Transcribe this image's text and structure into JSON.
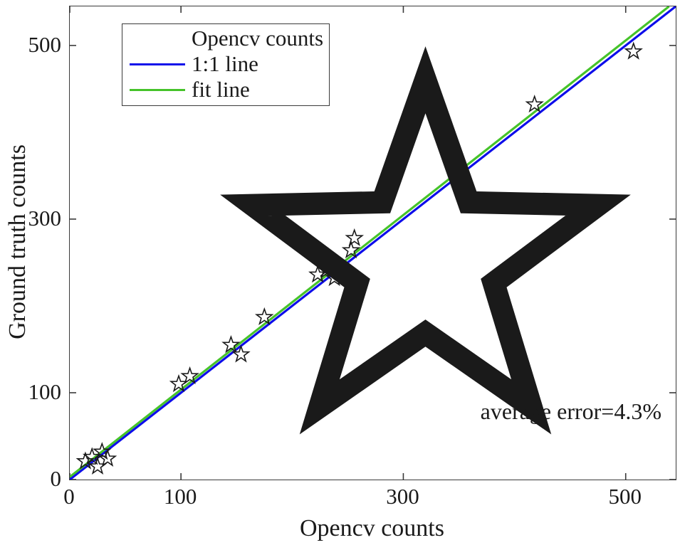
{
  "figure": {
    "background": "#ffffff",
    "text_color": "#1a1a1a",
    "axis_color": "#3a3a3a"
  },
  "chart_data": {
    "type": "scatter",
    "title": "",
    "xlabel": "Opencv counts",
    "ylabel": "Ground truth counts",
    "xlim": [
      0,
      545
    ],
    "ylim": [
      0,
      545
    ],
    "x_ticks": [
      0,
      100,
      300,
      500
    ],
    "y_ticks": [
      0,
      100,
      300,
      500
    ],
    "grid": false,
    "annotation": "average error=4.3%",
    "series": [
      {
        "name": "Opencv counts",
        "kind": "scatter",
        "marker": "pentagram",
        "marker_color": "#1a1a1a",
        "points": [
          [
            14,
            21
          ],
          [
            20,
            26
          ],
          [
            25,
            15
          ],
          [
            29,
            32
          ],
          [
            34,
            24
          ],
          [
            98,
            110
          ],
          [
            108,
            119
          ],
          [
            145,
            155
          ],
          [
            154,
            144
          ],
          [
            175,
            187
          ],
          [
            223,
            236
          ],
          [
            231,
            241
          ],
          [
            238,
            232
          ],
          [
            253,
            264
          ],
          [
            256,
            278
          ],
          [
            418,
            432
          ],
          [
            507,
            493
          ]
        ]
      },
      {
        "name": "1:1 line",
        "kind": "line",
        "color": "#0d0dea",
        "points": [
          [
            0,
            0
          ],
          [
            545,
            545
          ]
        ]
      },
      {
        "name": "fit line",
        "kind": "line",
        "color": "#46c32a",
        "points": [
          [
            0,
            3
          ],
          [
            539,
            545
          ]
        ]
      }
    ],
    "legend": {
      "position": "top-left",
      "entries": [
        {
          "label": "Opencv counts",
          "swatch": "star-marker",
          "color": "#1a1a1a"
        },
        {
          "label": "1:1 line",
          "swatch": "line",
          "color": "#0d0dea"
        },
        {
          "label": "fit line",
          "swatch": "line",
          "color": "#46c32a"
        }
      ]
    }
  }
}
